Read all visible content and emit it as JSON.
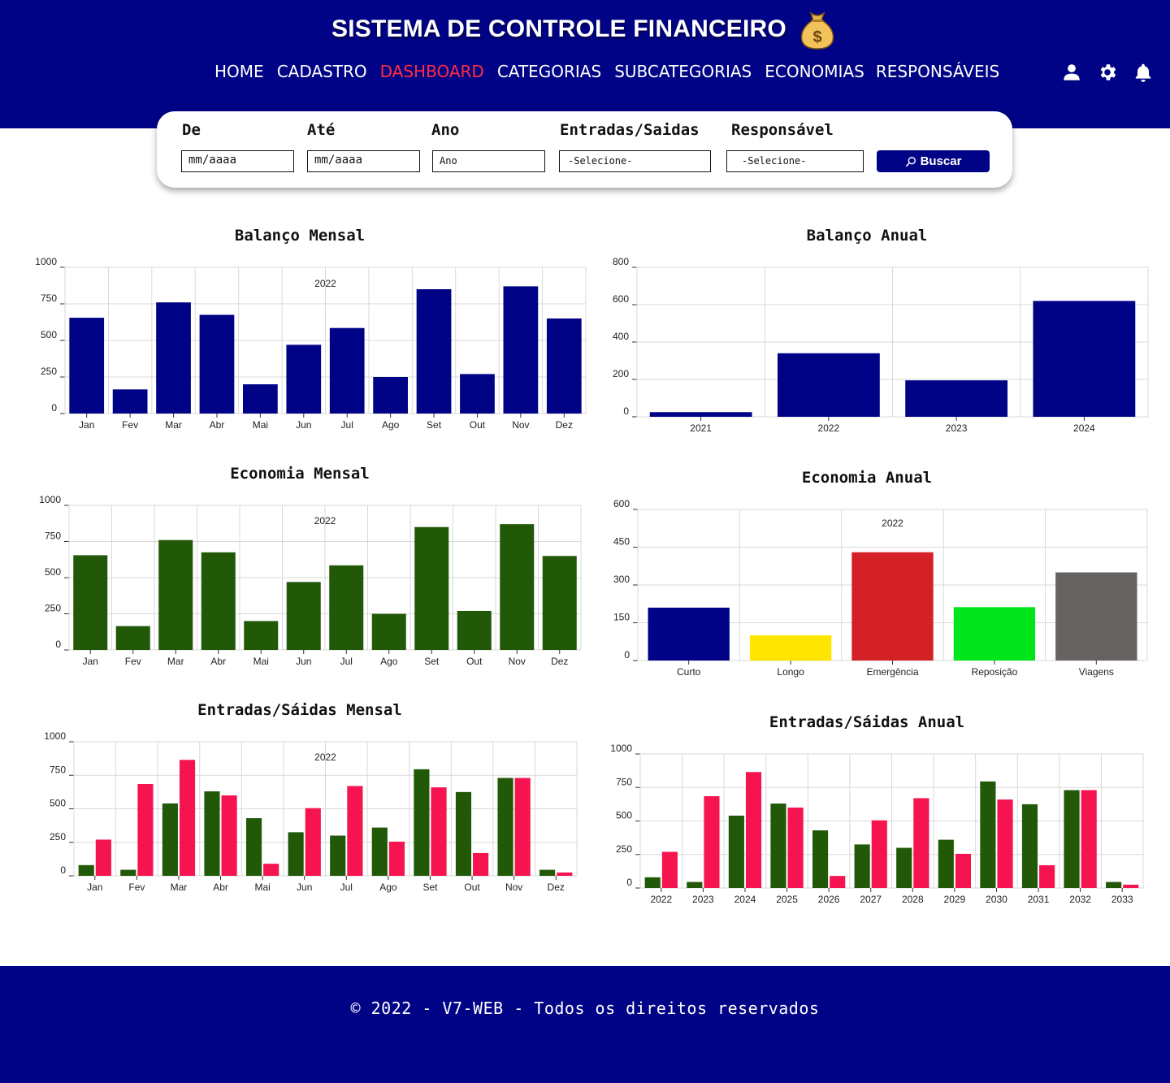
{
  "header": {
    "title": "SISTEMA DE CONTROLE FINANCEIRO",
    "logo_icon": "money-bag-icon",
    "nav": [
      {
        "label": "HOME",
        "active": false
      },
      {
        "label": "CADASTRO",
        "active": false
      },
      {
        "label": "DASHBOARD",
        "active": true
      },
      {
        "label": "CATEGORIAS",
        "active": false
      },
      {
        "label": "SUBCATEGORIAS",
        "active": false
      },
      {
        "label": "ECONOMIAS",
        "active": false
      },
      {
        "label": "RESPONSÁVEIS",
        "active": false
      }
    ],
    "icons": [
      "user-icon",
      "gear-icon",
      "bell-icon"
    ]
  },
  "filters": {
    "de_label": "De",
    "de_value": "mm/aaaa",
    "ate_label": "Até",
    "ate_value": "mm/aaaa",
    "ano_label": "Ano",
    "ano_value": "Ano",
    "entradas_label": "Entradas/Saidas",
    "entradas_value": "-Selecione-",
    "responsavel_label": "Responsável",
    "responsavel_value": "-Selecione-",
    "search_label": "Buscar"
  },
  "colors": {
    "primary": "#000385",
    "active_nav": "#ff2d43",
    "economia": "#215909",
    "saidas": "#f5144f"
  },
  "chart_data": [
    {
      "id": "balanco-mensal",
      "title": "Balanço Mensal",
      "type": "bar",
      "annotation": "2022",
      "categories": [
        "Jan",
        "Fev",
        "Mar",
        "Abr",
        "Mai",
        "Jun",
        "Jul",
        "Ago",
        "Set",
        "Out",
        "Nov",
        "Dez"
      ],
      "series": [
        {
          "values": [
            655,
            165,
            760,
            675,
            200,
            470,
            585,
            250,
            850,
            270,
            870,
            650
          ],
          "color": "#000385"
        }
      ],
      "ylim": [
        0,
        1000
      ],
      "yticks": [
        0,
        250,
        500,
        750,
        1000
      ],
      "grid": true
    },
    {
      "id": "balanco-anual",
      "title": "Balanço Anual",
      "type": "bar",
      "categories": [
        "2021",
        "2022",
        "2023",
        "2024"
      ],
      "series": [
        {
          "values": [
            25,
            340,
            195,
            620
          ],
          "color": "#000385"
        }
      ],
      "ylim": [
        0,
        800
      ],
      "yticks": [
        0,
        200,
        400,
        600,
        800
      ],
      "grid": true
    },
    {
      "id": "economia-mensal",
      "title": "Economia Mensal",
      "type": "bar",
      "annotation": "2022",
      "categories": [
        "Jan",
        "Fev",
        "Mar",
        "Abr",
        "Mai",
        "Jun",
        "Jul",
        "Ago",
        "Set",
        "Out",
        "Nov",
        "Dez"
      ],
      "series": [
        {
          "values": [
            655,
            165,
            760,
            675,
            200,
            470,
            585,
            250,
            850,
            270,
            870,
            650
          ],
          "color": "#215909"
        }
      ],
      "ylim": [
        0,
        1000
      ],
      "yticks": [
        0,
        250,
        500,
        750,
        1000
      ],
      "grid": true
    },
    {
      "id": "economia-anual",
      "title": "Economia Anual",
      "type": "bar",
      "annotation": "2022",
      "categories": [
        "Curto",
        "Longo",
        "Emergência",
        "Reposição",
        "Viagens"
      ],
      "series": [
        {
          "values": [
            210,
            100,
            430,
            212,
            350
          ],
          "colors": [
            "#000385",
            "#ffe500",
            "#d42026",
            "#00e51b",
            "#666262"
          ]
        }
      ],
      "ylim": [
        0,
        600
      ],
      "yticks": [
        0,
        150,
        300,
        450,
        600
      ],
      "grid": true
    },
    {
      "id": "entradas-saidas-mensal",
      "title": "Entradas/Sáidas Mensal",
      "type": "bar",
      "annotation": "2022",
      "categories": [
        "Jan",
        "Fev",
        "Mar",
        "Abr",
        "Mai",
        "Jun",
        "Jul",
        "Ago",
        "Set",
        "Out",
        "Nov",
        "Dez"
      ],
      "series": [
        {
          "values": [
            80,
            45,
            540,
            630,
            430,
            325,
            300,
            360,
            795,
            625,
            730,
            45
          ],
          "color": "#215909"
        },
        {
          "values": [
            270,
            685,
            865,
            600,
            90,
            505,
            670,
            255,
            660,
            170,
            730,
            25
          ],
          "color": "#f5144f"
        }
      ],
      "ylim": [
        0,
        1000
      ],
      "yticks": [
        0,
        250,
        500,
        750,
        1000
      ],
      "grid": true
    },
    {
      "id": "entradas-saidas-anual",
      "title": "Entradas/Sáidas Anual",
      "type": "bar",
      "categories": [
        "2022",
        "2023",
        "2024",
        "2025",
        "2026",
        "2027",
        "2028",
        "2029",
        "2030",
        "2031",
        "2032",
        "2033"
      ],
      "series": [
        {
          "values": [
            80,
            45,
            540,
            630,
            430,
            325,
            300,
            360,
            795,
            625,
            730,
            45
          ],
          "color": "#215909"
        },
        {
          "values": [
            270,
            685,
            865,
            600,
            90,
            505,
            670,
            255,
            660,
            170,
            730,
            25
          ],
          "color": "#f5144f"
        }
      ],
      "ylim": [
        0,
        1000
      ],
      "yticks": [
        0,
        250,
        500,
        750,
        1000
      ],
      "grid": true
    }
  ],
  "footer": {
    "text": "© 2022 - V7-WEB - Todos os direitos reservados"
  }
}
